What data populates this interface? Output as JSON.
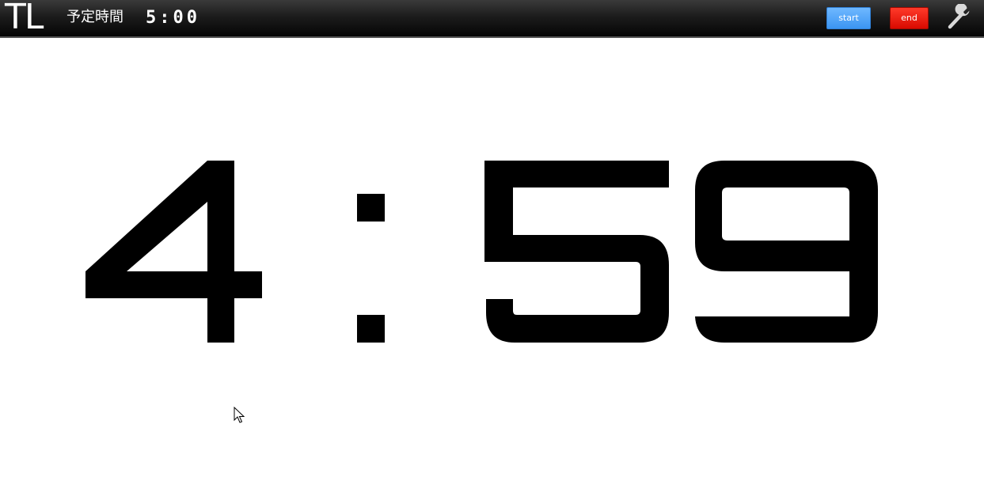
{
  "header": {
    "logo": "TL",
    "planned_label": "予定時間",
    "planned_time": "5:00"
  },
  "buttons": {
    "start_label": "start",
    "end_label": "end"
  },
  "icons": {
    "settings": "wrench-icon",
    "cursor": "mouse-pointer-icon"
  },
  "timer": {
    "minutes": "4",
    "separator": ":",
    "seconds": "59"
  },
  "colors": {
    "start_button": "#3b95f2",
    "end_button": "#d80a00",
    "timer_digits": "#000000",
    "background": "#ffffff"
  }
}
